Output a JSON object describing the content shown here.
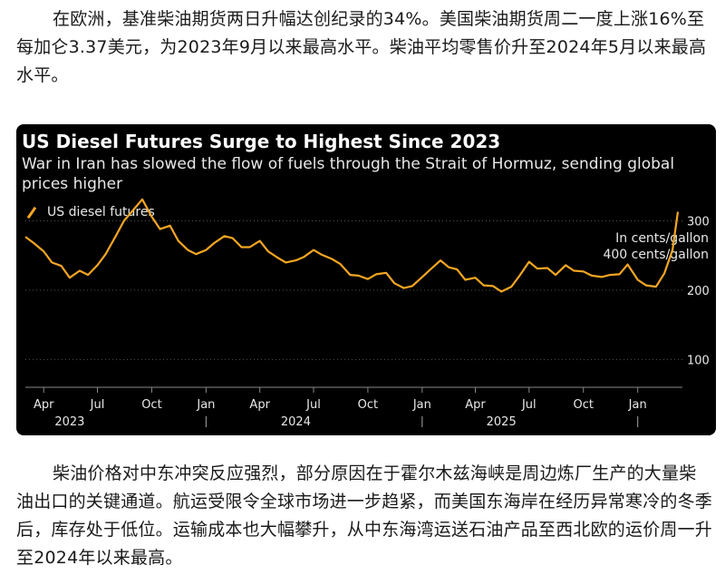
{
  "article": {
    "para1": "在欧洲，基准柴油期货两日升幅达创纪录的34%。美国柴油期货周二一度上涨16%至每加仑3.37美元，为2023年9月以来最高水平。柴油平均零售价升至2024年5月以来最高水平。",
    "para2": "柴油价格对中东冲突反应强烈，部分原因在于霍尔木兹海峡是周边炼厂生产的大量柴油出口的关键通道。航运受限令全球市场进一步趋紧，而美国东海岸在经历异常寒冷的冬季后，库存处于低位。运输成本也大幅攀升，从中东海湾运送石油产品至西北欧的运价周一升至2024年以来最高。"
  },
  "colors": {
    "background": "#000000",
    "series": "#f5a623",
    "text": "#e8e8e8",
    "grid": "#555555"
  },
  "chart_data": {
    "type": "line",
    "title": "US Diesel Futures Surge to Highest Since 2023",
    "subtitle": "War in Iran has slowed the flow of fuels through the Strait of Hormuz, sending global prices higher",
    "legend": [
      "US diesel futures"
    ],
    "units_line1": "In cents/gallon",
    "units_line2": "400 cents/gallon",
    "ylim": [
      60,
      400
    ],
    "yticks": [
      100,
      200,
      300
    ],
    "ytick_labels": [
      "100",
      "200",
      "300"
    ],
    "xticks": [
      {
        "date": "2023-04-01",
        "label": "Apr"
      },
      {
        "date": "2023-07-01",
        "label": "Jul"
      },
      {
        "date": "2023-10-01",
        "label": "Oct"
      },
      {
        "date": "2024-01-01",
        "label": "Jan"
      },
      {
        "date": "2024-04-01",
        "label": "Apr"
      },
      {
        "date": "2024-07-01",
        "label": "Jul"
      },
      {
        "date": "2024-10-01",
        "label": "Oct"
      },
      {
        "date": "2025-01-01",
        "label": "Jan"
      },
      {
        "date": "2025-04-01",
        "label": "Apr"
      },
      {
        "date": "2025-07-01",
        "label": "Jul"
      },
      {
        "date": "2025-10-01",
        "label": "Oct"
      },
      {
        "date": "2026-01-01",
        "label": "Jan"
      }
    ],
    "year_labels": [
      {
        "date": "2023-05-15",
        "label": "2023"
      },
      {
        "date": "2024-06-01",
        "label": "2024"
      },
      {
        "date": "2025-05-15",
        "label": "2025"
      }
    ],
    "year_separators": [
      "2024-01-01",
      "2025-01-01",
      "2026-01-01"
    ],
    "series": [
      {
        "name": "US diesel futures",
        "x": [
          "2023-03-01",
          "2023-03-15",
          "2023-04-01",
          "2023-04-15",
          "2023-05-01",
          "2023-05-15",
          "2023-06-01",
          "2023-06-15",
          "2023-07-01",
          "2023-07-15",
          "2023-08-01",
          "2023-08-15",
          "2023-09-01",
          "2023-09-15",
          "2023-10-01",
          "2023-10-15",
          "2023-11-01",
          "2023-11-15",
          "2023-12-01",
          "2023-12-15",
          "2024-01-01",
          "2024-01-15",
          "2024-02-01",
          "2024-02-15",
          "2024-03-01",
          "2024-03-15",
          "2024-04-01",
          "2024-04-15",
          "2024-05-01",
          "2024-05-15",
          "2024-06-01",
          "2024-06-15",
          "2024-07-01",
          "2024-07-15",
          "2024-08-01",
          "2024-08-15",
          "2024-09-01",
          "2024-09-15",
          "2024-10-01",
          "2024-10-15",
          "2024-11-01",
          "2024-11-15",
          "2024-12-01",
          "2024-12-15",
          "2025-01-01",
          "2025-01-15",
          "2025-02-01",
          "2025-02-15",
          "2025-03-01",
          "2025-03-15",
          "2025-04-01",
          "2025-04-15",
          "2025-05-01",
          "2025-05-15",
          "2025-06-01",
          "2025-06-15",
          "2025-07-01",
          "2025-07-15",
          "2025-08-01",
          "2025-08-15",
          "2025-09-01",
          "2025-09-15",
          "2025-10-01",
          "2025-10-15",
          "2025-11-01",
          "2025-11-15",
          "2025-12-01",
          "2025-12-15",
          "2026-01-01",
          "2026-01-15",
          "2026-02-01",
          "2026-02-15",
          "2026-03-01",
          "2026-03-10"
        ],
        "values": [
          277,
          268,
          256,
          240,
          235,
          218,
          228,
          222,
          236,
          252,
          278,
          300,
          317,
          331,
          306,
          288,
          293,
          271,
          258,
          252,
          258,
          268,
          278,
          275,
          262,
          262,
          271,
          256,
          247,
          240,
          243,
          248,
          258,
          251,
          245,
          238,
          222,
          221,
          216,
          223,
          225,
          210,
          203,
          206,
          219,
          230,
          243,
          233,
          230,
          215,
          218,
          207,
          206,
          198,
          205,
          221,
          241,
          231,
          232,
          222,
          236,
          228,
          227,
          221,
          219,
          222,
          223,
          237,
          215,
          207,
          205,
          224,
          258,
          313
        ]
      }
    ]
  }
}
